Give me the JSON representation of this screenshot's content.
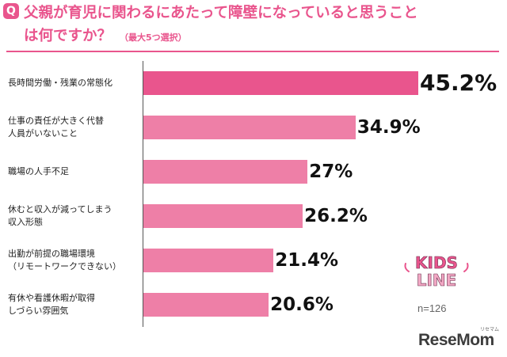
{
  "header": {
    "badge": "Q",
    "title_line1": "父親が育児に関わるにあたって障壁になっていると思うこと",
    "title_line2": "は何ですか？",
    "title_note": "（最大5つ選択）"
  },
  "chart_data": {
    "type": "bar",
    "orientation": "horizontal",
    "title": "父親が育児に関わるにあたって障壁になっていると思うことは何ですか？（最大5つ選択）",
    "categories": [
      "長時間労働・残業の常態化",
      "仕事の責任が大きく代替人員がいないこと",
      "職場の人手不足",
      "休むと収入が減ってしまう収入形態",
      "出勤が前提の職場環境（リモートワークできない）",
      "有休や看護休暇が取得しづらい雰囲気"
    ],
    "category_lines": [
      [
        "長時間労働・残業の常態化"
      ],
      [
        "仕事の責任が大きく代替",
        "人員がいないこと"
      ],
      [
        "職場の人手不足"
      ],
      [
        "休むと収入が減ってしまう",
        "収入形態"
      ],
      [
        "出勤が前提の職場環境",
        "（リモートワークできない）"
      ],
      [
        "有休や看護休暇が取得",
        "しづらい雰囲気"
      ]
    ],
    "values": [
      45.2,
      34.9,
      27,
      26.2,
      21.4,
      20.6
    ],
    "value_labels": [
      "45.2%",
      "34.9%",
      "27%",
      "26.2%",
      "21.4%",
      "20.6%"
    ],
    "unit": "%",
    "colors": [
      "#e9558d",
      "#ee7fa7",
      "#ee7fa7",
      "#ee7fa7",
      "#ee7fa7",
      "#ee7fa7"
    ],
    "grid": false,
    "legend": "none"
  },
  "footer": {
    "brand_line1": "KIDS",
    "brand_line2": "LINE",
    "sample_size": "n=126",
    "publisher": "ReseMom",
    "publisher_kana": "リセマム"
  },
  "colors": {
    "accent": "#e9558d",
    "bar": "#ee7fa7",
    "brand_kids": "#e9558d"
  }
}
